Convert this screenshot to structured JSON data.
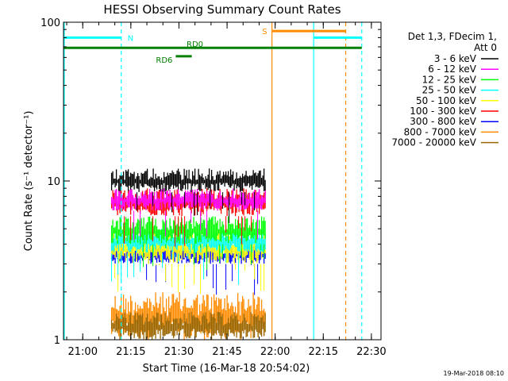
{
  "chart_data": {
    "type": "line",
    "title": "HESSI Observing Summary Count Rates",
    "xlabel": "Start Time (16-Mar-18 20:54:02)",
    "ylabel": "Count Rate (s⁻¹ detector⁻¹)",
    "yscale": "log",
    "ylim": [
      1,
      100
    ],
    "xlim": [
      "20:54",
      "22:33"
    ],
    "x_ticks": [
      "21:00",
      "21:15",
      "21:30",
      "21:45",
      "22:00",
      "22:15",
      "22:30"
    ],
    "y_ticks": [
      "1",
      "10",
      "100"
    ],
    "timestamp": "19-Mar-2018 08:10",
    "legend_header": [
      "Det 1,3, FDecim 1,",
      "Att 0"
    ],
    "legend_placement": "right, outside plot",
    "data_window": [
      "21:09",
      "21:57"
    ],
    "series": [
      {
        "name": "3 - 6 keV",
        "color": "#000000",
        "low": 8.5,
        "high": 12
      },
      {
        "name": "6 - 12 keV",
        "color": "#ff00ff",
        "low": 6.5,
        "high": 9
      },
      {
        "name": "12 - 25 keV",
        "color": "#00ff00",
        "low": 4,
        "high": 6
      },
      {
        "name": "25 - 50 keV",
        "color": "#00ffff",
        "low": 3.5,
        "high": 5
      },
      {
        "name": "50 - 100 keV",
        "color": "#ffff00",
        "low": 3,
        "high": 5
      },
      {
        "name": "100 - 300 keV",
        "color": "#ff0000",
        "low": 6,
        "high": 9
      },
      {
        "name": "300 - 800 keV",
        "color": "#0000ff",
        "low": 3,
        "high": 4
      },
      {
        "name": "800 - 7000 keV",
        "color": "#ff8c00",
        "low": 1,
        "high": 2
      },
      {
        "name": "7000 - 20000 keV",
        "color": "#996600",
        "low": 1,
        "high": 1.5
      }
    ],
    "orbit_flags": [
      {
        "label": "N",
        "color": "#00ffff",
        "y": 80,
        "segments": [
          [
            "20:54",
            "21:12"
          ],
          [
            "22:12",
            "22:27"
          ]
        ]
      },
      {
        "label": "S",
        "color": "#ff8c00",
        "y": 88,
        "segments": [
          [
            "21:59",
            "22:22"
          ]
        ]
      },
      {
        "label": "RD0",
        "color": "#008000",
        "y": 69,
        "segments": [
          [
            "20:54",
            "22:27"
          ]
        ]
      },
      {
        "label": "RD6",
        "color": "#008000",
        "y": 61,
        "segments": [
          [
            "21:29",
            "21:34"
          ]
        ]
      }
    ],
    "vertical_markers": [
      {
        "time": "21:12",
        "color": "#00ffff",
        "style": "dashed"
      },
      {
        "time": "21:59",
        "color": "#ff8c00",
        "style": "solid"
      },
      {
        "time": "22:12",
        "color": "#00ffff",
        "style": "solid"
      },
      {
        "time": "22:22",
        "color": "#ff8c00",
        "style": "dashed"
      },
      {
        "time": "22:27",
        "color": "#00ffff",
        "style": "dashed"
      }
    ]
  }
}
